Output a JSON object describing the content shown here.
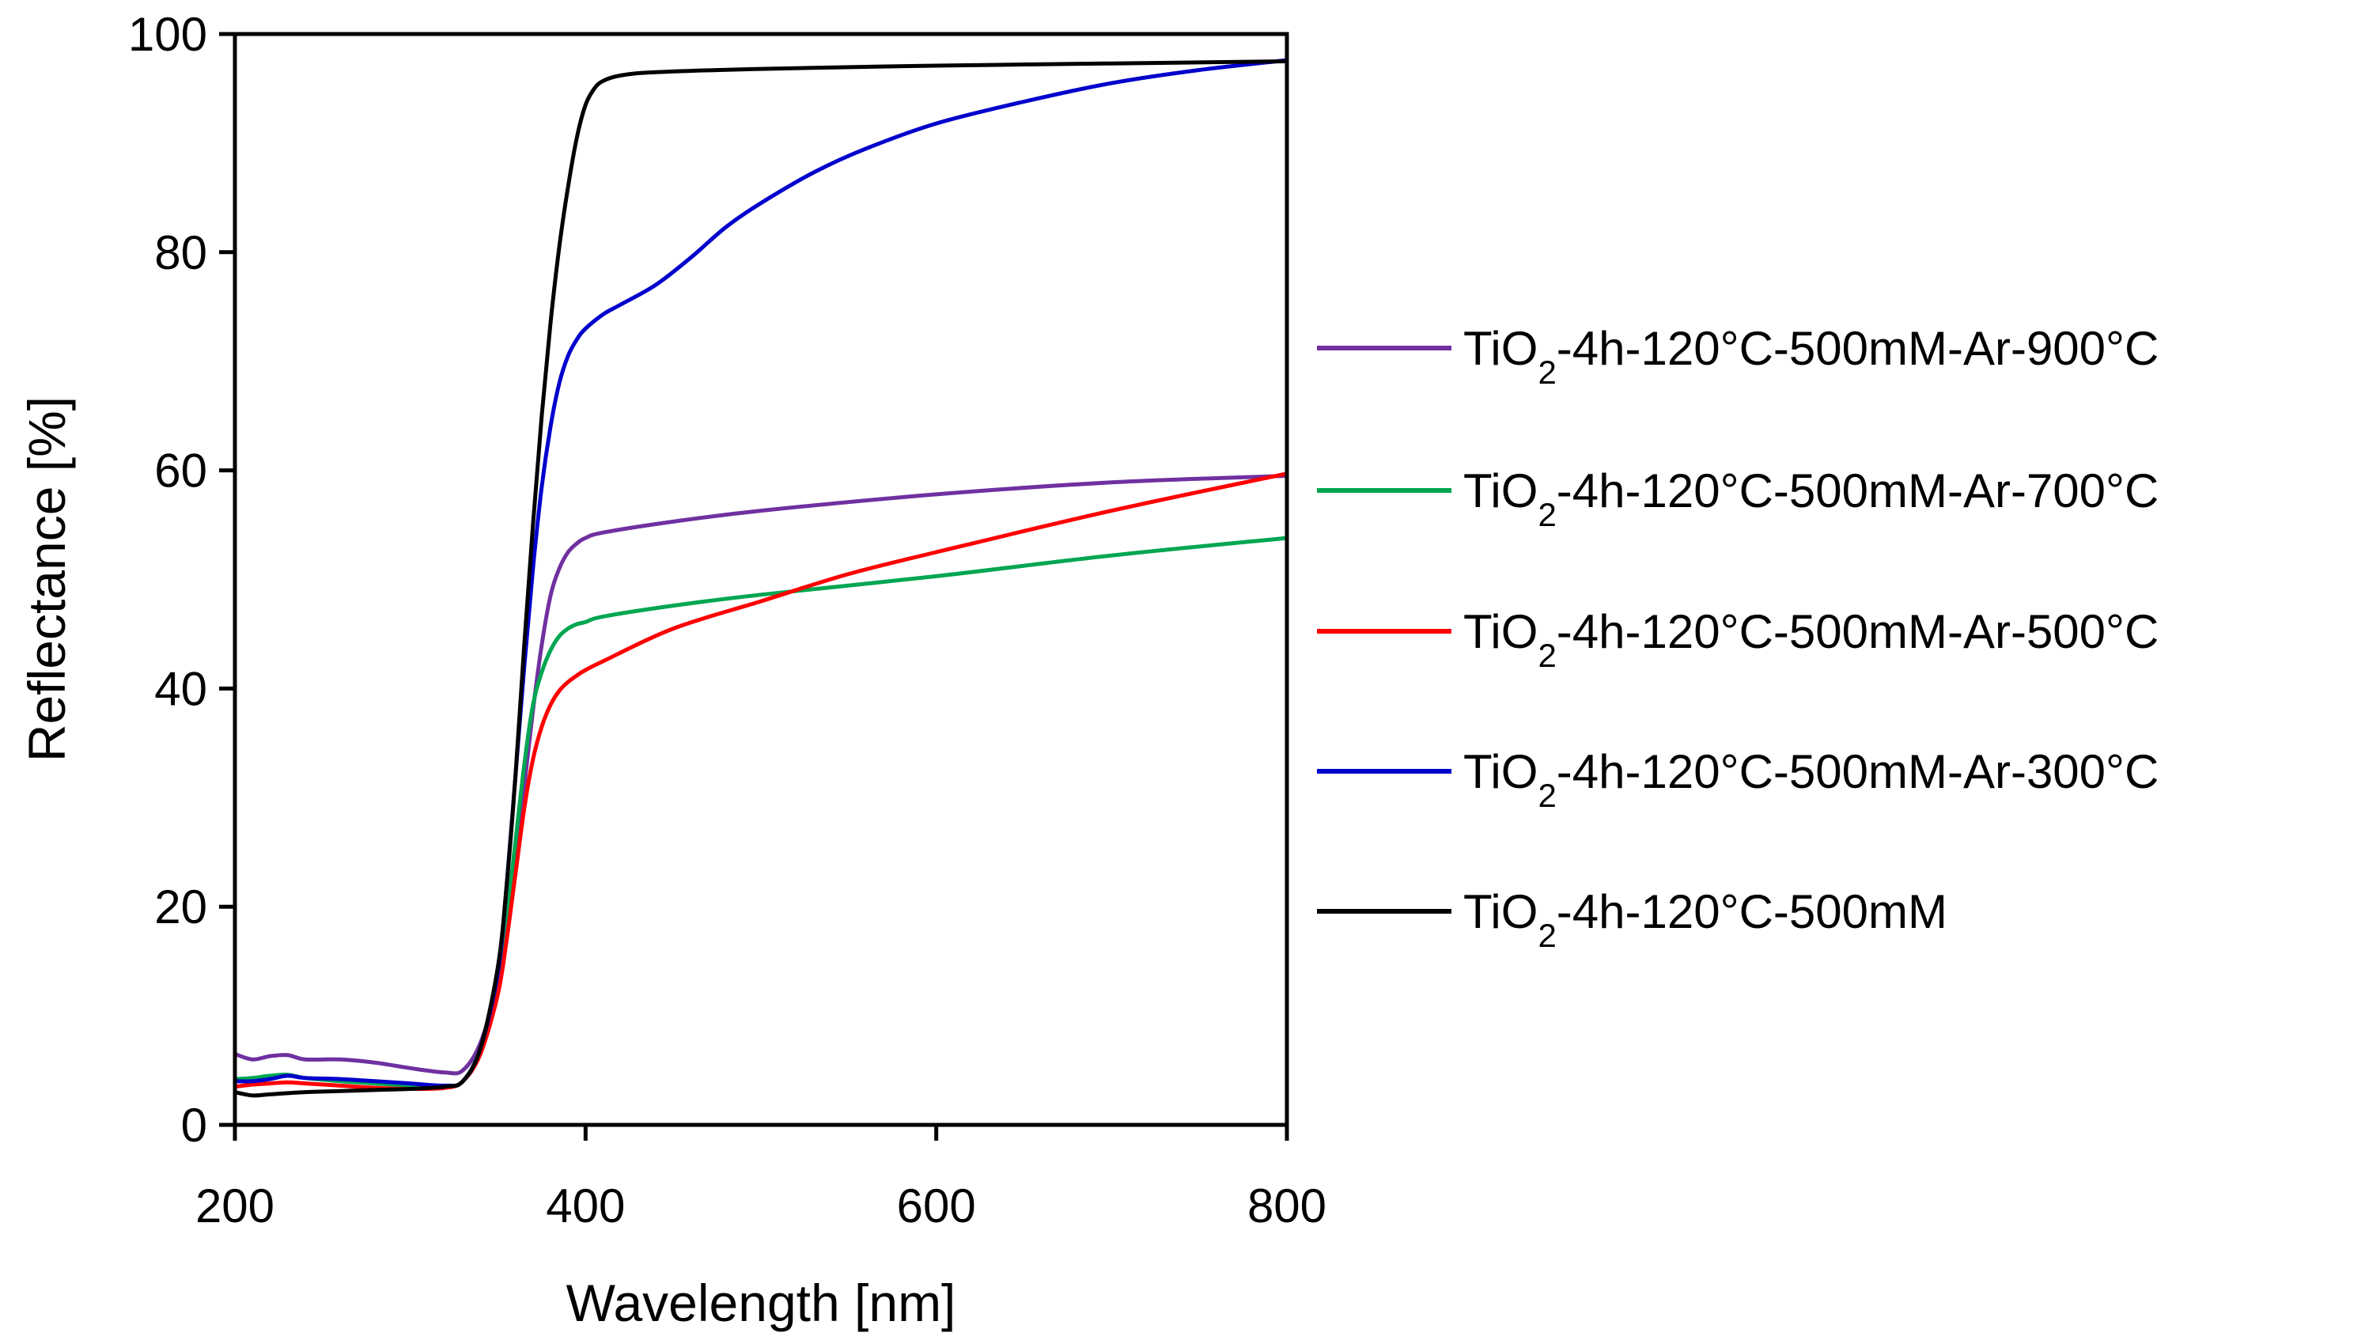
{
  "chart_data": {
    "type": "line",
    "title": "",
    "xlabel": "Wavelength  [nm]",
    "ylabel": "Reflectance  [%]",
    "xlim": [
      200,
      800
    ],
    "ylim": [
      0,
      100
    ],
    "xticks": [
      200,
      400,
      600,
      800
    ],
    "yticks": [
      0,
      20,
      40,
      60,
      80,
      100
    ],
    "grid": false,
    "legend_position": "right",
    "series": [
      {
        "name": "TiO2-4h-120°C-500mM-Ar-900°C",
        "label_parts": [
          "TiO",
          "2",
          "-4h-120°C-500mM-Ar-900°C"
        ],
        "color": "#7030a0",
        "x": [
          200,
          210,
          220,
          230,
          240,
          260,
          280,
          300,
          320,
          330,
          340,
          350,
          355,
          360,
          365,
          370,
          375,
          380,
          385,
          390,
          395,
          400,
          410,
          450,
          500,
          600,
          700,
          800
        ],
        "y": [
          6.5,
          6.0,
          6.3,
          6.4,
          6.0,
          6.0,
          5.7,
          5.2,
          4.8,
          5.0,
          7.5,
          13.0,
          18.0,
          24.0,
          31.0,
          38.0,
          44.0,
          48.5,
          51.0,
          52.5,
          53.3,
          53.8,
          54.3,
          55.3,
          56.3,
          57.8,
          58.9,
          59.5
        ]
      },
      {
        "name": "TiO2-4h-120°C-500mM-Ar-700°C",
        "label_parts": [
          "TiO",
          "2",
          "-4h-120°C-500mM-Ar-700°C"
        ],
        "color": "#00a651",
        "x": [
          200,
          210,
          220,
          230,
          240,
          260,
          280,
          300,
          320,
          330,
          340,
          350,
          355,
          360,
          365,
          370,
          375,
          380,
          385,
          390,
          395,
          400,
          410,
          450,
          500,
          600,
          700,
          800
        ],
        "y": [
          4.2,
          4.3,
          4.5,
          4.6,
          4.3,
          4.0,
          3.8,
          3.6,
          3.5,
          4.0,
          7.0,
          13.5,
          19.0,
          26.0,
          33.0,
          38.5,
          41.5,
          43.5,
          44.8,
          45.5,
          45.9,
          46.1,
          46.6,
          47.6,
          48.6,
          50.3,
          52.2,
          53.8
        ]
      },
      {
        "name": "TiO2-4h-120°C-500mM-Ar-500°C",
        "label_parts": [
          "TiO",
          "2",
          "-4h-120°C-500mM-Ar-500°C"
        ],
        "color": "#ff0000",
        "x": [
          200,
          210,
          220,
          230,
          240,
          260,
          280,
          300,
          320,
          330,
          340,
          350,
          355,
          360,
          365,
          370,
          375,
          380,
          385,
          390,
          395,
          400,
          410,
          450,
          500,
          550,
          600,
          700,
          800
        ],
        "y": [
          3.5,
          3.7,
          3.8,
          3.9,
          3.8,
          3.6,
          3.4,
          3.3,
          3.4,
          4.0,
          6.5,
          12.0,
          17.0,
          23.0,
          29.0,
          33.5,
          36.5,
          38.5,
          39.8,
          40.6,
          41.2,
          41.7,
          42.5,
          45.5,
          48.0,
          50.5,
          52.5,
          56.3,
          59.7
        ]
      },
      {
        "name": "TiO2-4h-120°C-500mM-Ar-300°C",
        "label_parts": [
          "TiO",
          "2",
          "-4h-120°C-500mM-Ar-300°C"
        ],
        "color": "#0000cc",
        "x": [
          200,
          210,
          220,
          230,
          240,
          260,
          280,
          300,
          320,
          330,
          340,
          350,
          355,
          360,
          365,
          370,
          375,
          380,
          385,
          390,
          395,
          400,
          410,
          420,
          440,
          460,
          480,
          500,
          530,
          560,
          600,
          650,
          700,
          750,
          800
        ],
        "y": [
          4.0,
          4.0,
          4.2,
          4.5,
          4.3,
          4.2,
          4.0,
          3.8,
          3.6,
          4.0,
          7.0,
          14.0,
          22.0,
          32.0,
          42.0,
          51.0,
          58.5,
          64.0,
          68.0,
          70.5,
          72.0,
          73.0,
          74.3,
          75.2,
          77.0,
          79.5,
          82.3,
          84.5,
          87.3,
          89.5,
          91.8,
          93.8,
          95.5,
          96.7,
          97.6
        ]
      },
      {
        "name": "TiO2-4h-120°C-500mM",
        "label_parts": [
          "TiO",
          "2",
          "-4h-120°C-500mM"
        ],
        "color": "#000000",
        "x": [
          200,
          210,
          220,
          240,
          260,
          280,
          300,
          320,
          330,
          340,
          350,
          355,
          360,
          365,
          370,
          375,
          380,
          385,
          390,
          395,
          400,
          405,
          410,
          420,
          440,
          500,
          600,
          700,
          800
        ],
        "y": [
          3.0,
          2.7,
          2.8,
          3.0,
          3.1,
          3.2,
          3.3,
          3.5,
          4.0,
          7.0,
          14.5,
          22.0,
          32.0,
          44.0,
          55.0,
          65.0,
          73.5,
          80.5,
          86.0,
          90.5,
          93.5,
          95.0,
          95.7,
          96.2,
          96.5,
          96.8,
          97.1,
          97.3,
          97.5
        ]
      }
    ]
  }
}
